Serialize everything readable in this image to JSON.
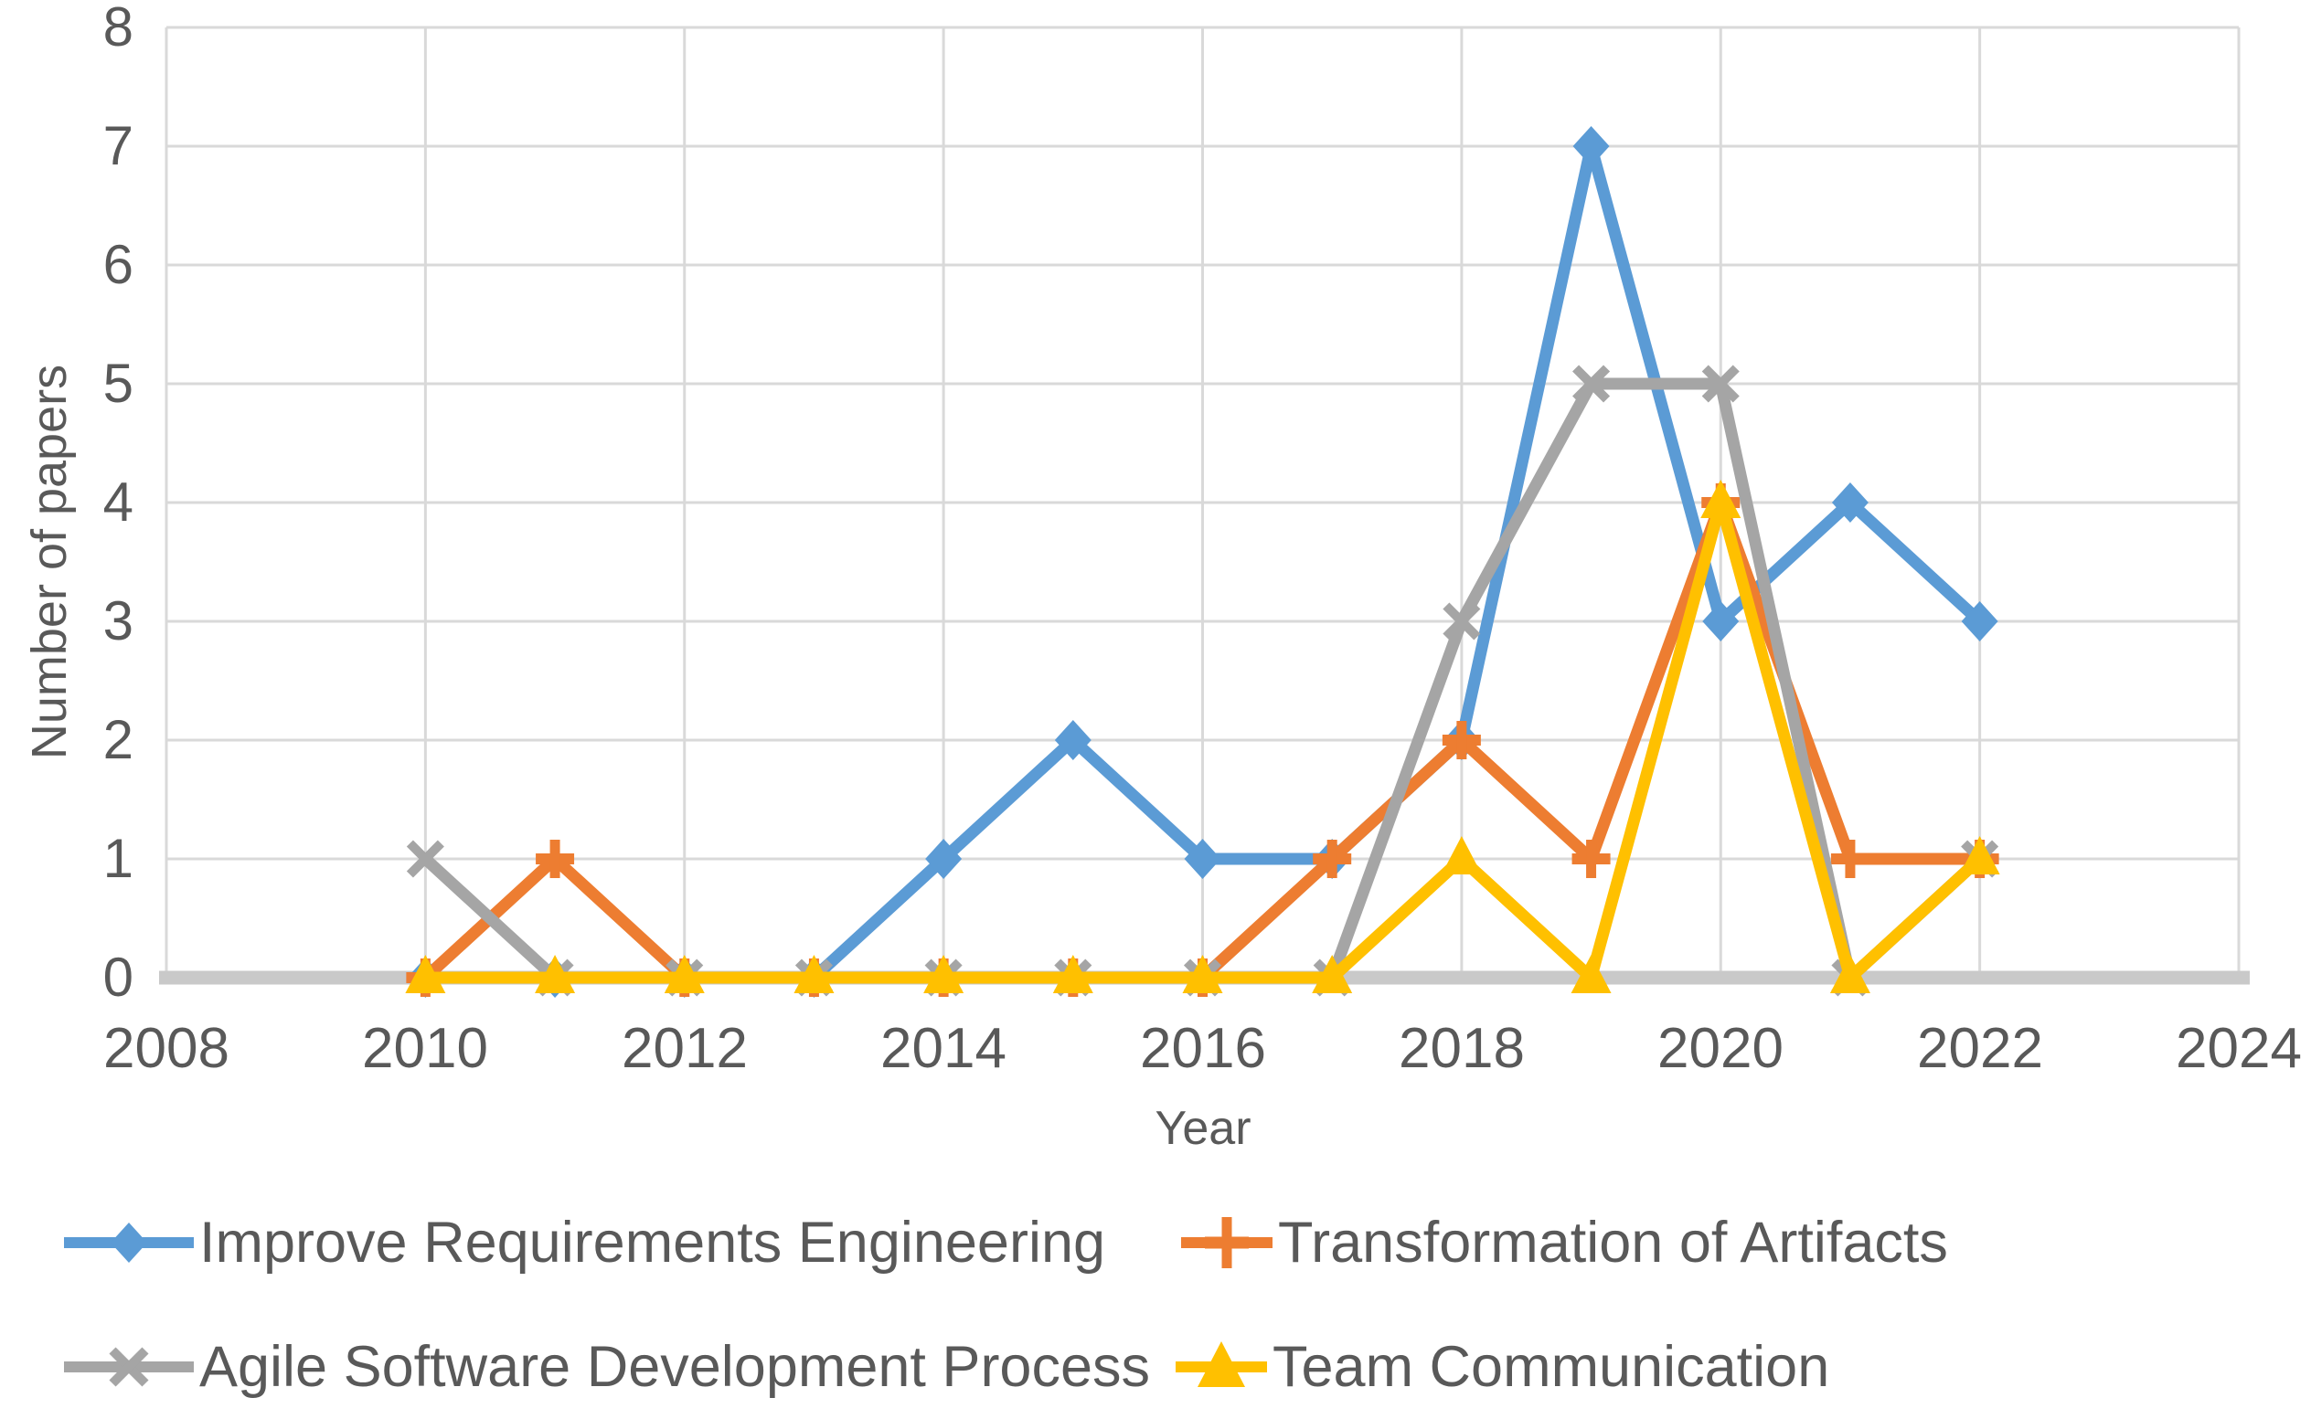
{
  "figure": {
    "background": "#ffffff",
    "text_color": "#595959",
    "gridline_color": "#d9d9d9",
    "axis_line_color": "#c9c9c9"
  },
  "axes": {
    "x_title": "Year",
    "y_title": "Number of papers",
    "x_ticks": [
      "2008",
      "2010",
      "2012",
      "2014",
      "2016",
      "2018",
      "2020",
      "2022",
      "2024"
    ],
    "y_ticks": [
      "0",
      "1",
      "2",
      "3",
      "4",
      "5",
      "6",
      "7",
      "8"
    ]
  },
  "chart_data": {
    "type": "line",
    "title": "",
    "xlabel": "Year",
    "ylabel": "Number of papers",
    "xlim": [
      2008,
      2024
    ],
    "ylim": [
      0,
      8
    ],
    "x_tick_step": 2,
    "y_tick_step": 1,
    "grid": true,
    "legend_position": "bottom",
    "x": [
      2010,
      2011,
      2012,
      2013,
      2014,
      2015,
      2016,
      2017,
      2018,
      2019,
      2020,
      2021,
      2022
    ],
    "series": [
      {
        "name": "Improve Requirements Engineering",
        "color": "#5B9BD5",
        "marker": "diamond",
        "values": [
          0,
          0,
          0,
          0,
          1,
          2,
          1,
          1,
          2,
          7,
          3,
          4,
          3
        ]
      },
      {
        "name": "Transformation of Artifacts",
        "color": "#ED7D31",
        "marker": "plus",
        "values": [
          0,
          1,
          0,
          0,
          0,
          0,
          0,
          1,
          2,
          1,
          4,
          1,
          1
        ]
      },
      {
        "name": "Agile Software Development Process",
        "color": "#A5A5A5",
        "marker": "x",
        "values": [
          1,
          0,
          0,
          0,
          0,
          0,
          0,
          0,
          3,
          5,
          5,
          0,
          1
        ]
      },
      {
        "name": "Team Communication",
        "color": "#FFC000",
        "marker": "triangle",
        "values": [
          0,
          0,
          0,
          0,
          0,
          0,
          0,
          0,
          1,
          0,
          4,
          0,
          1
        ]
      }
    ]
  }
}
